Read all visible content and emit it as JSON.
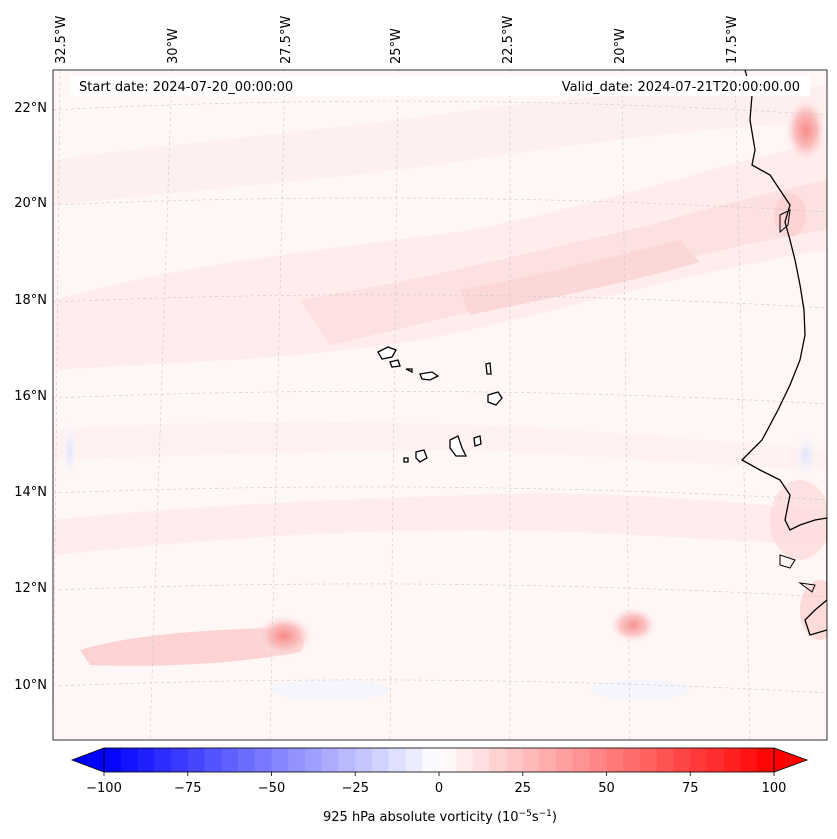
{
  "header": {
    "start_date": "Start date: 2024-07-20_00:00:00",
    "valid_date": "Valid_date: 2024-07-21T20:00:00.00"
  },
  "map": {
    "projection": "rotated/conic lat-lon",
    "lon_labels": [
      "32.5°W",
      "30°W",
      "27.5°W",
      "25°W",
      "22.5°W",
      "20°W",
      "17.5°W"
    ],
    "lat_labels": [
      "22°N",
      "20°N",
      "18°N",
      "16°N",
      "14°N",
      "12°N",
      "10°N"
    ],
    "gridlines": true,
    "features": [
      "Cape Verde islands",
      "West African coastline"
    ]
  },
  "colorbar": {
    "label_main": "925 hPa absolute vorticity (10",
    "exp1": "−5",
    "mid": "s",
    "exp2": "−1",
    "label_end": ")",
    "ticks": [
      "−100",
      "−75",
      "−50",
      "−25",
      "0",
      "25",
      "50",
      "75",
      "100"
    ],
    "min": -100,
    "max": 100,
    "colormap": "bwr",
    "extend": "both",
    "low_color": "#0000ff",
    "mid_color": "#ffffff",
    "high_color": "#ff0000"
  }
}
